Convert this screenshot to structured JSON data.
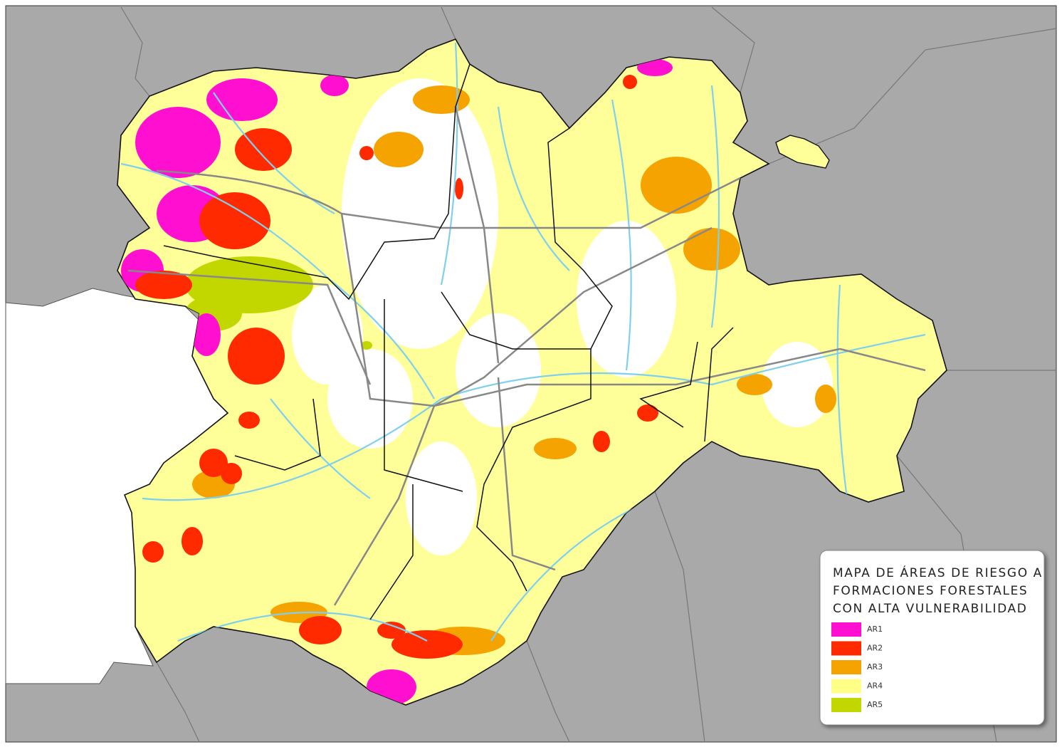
{
  "legend": {
    "title": [
      "MAPA DE ÁREAS DE RIESGO A",
      "FORMACIONES FORESTALES",
      "CON ALTA VULNERABILIDAD"
    ],
    "items": [
      {
        "label": "AR1",
        "color": "#ff10d0"
      },
      {
        "label": "AR2",
        "color": "#ff2a00"
      },
      {
        "label": "AR3",
        "color": "#f5a300"
      },
      {
        "label": "AR4",
        "color": "#ffff88"
      },
      {
        "label": "AR5",
        "color": "#c2d600"
      }
    ]
  }
}
